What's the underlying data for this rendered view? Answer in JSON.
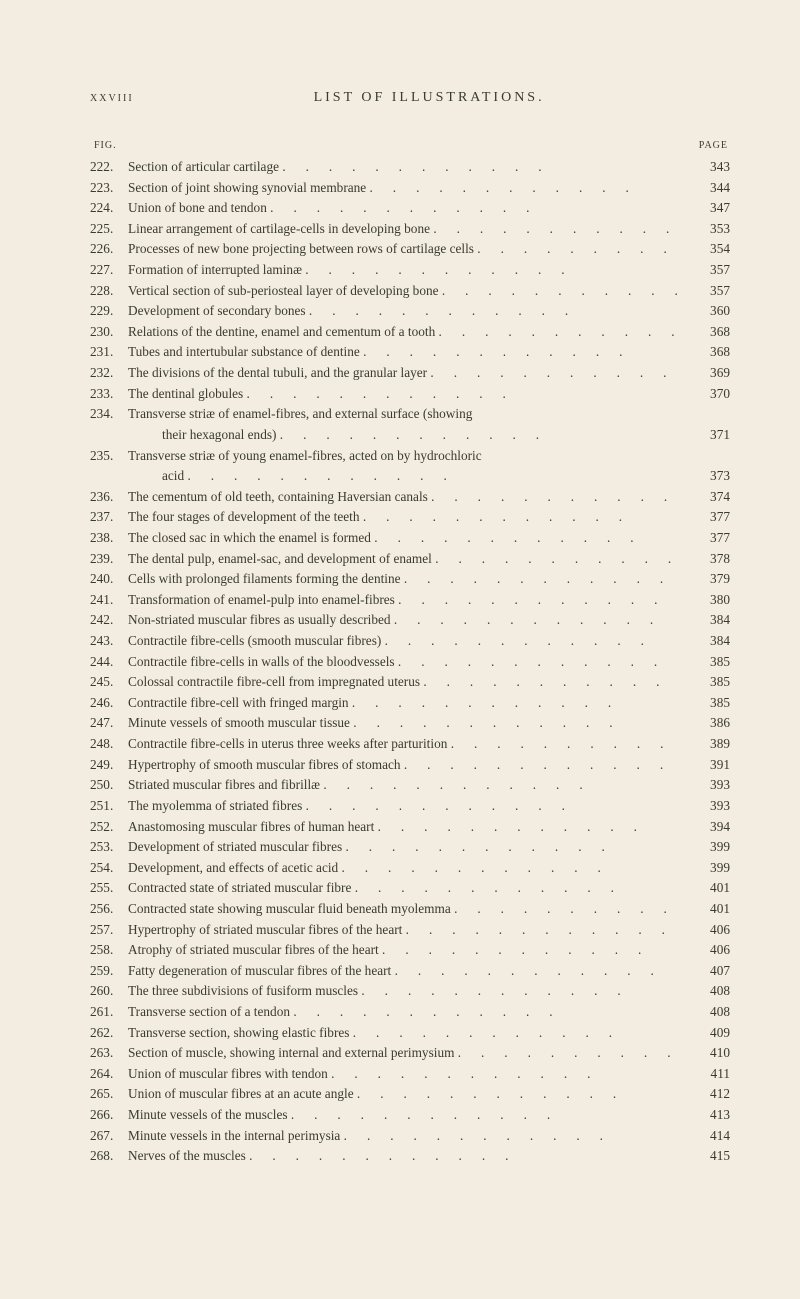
{
  "header": {
    "roman": "xxviii",
    "title": "LIST OF ILLUSTRATIONS."
  },
  "col_heads": {
    "left": "FIG.",
    "right": "PAGE"
  },
  "entries": [
    {
      "fig": "222.",
      "title": "Section of articular cartilage",
      "page": "343"
    },
    {
      "fig": "223.",
      "title": "Section of joint showing synovial membrane",
      "page": "344"
    },
    {
      "fig": "224.",
      "title": "Union of bone and tendon",
      "page": "347"
    },
    {
      "fig": "225.",
      "title": "Linear arrangement of cartilage-cells in developing bone",
      "page": "353"
    },
    {
      "fig": "226.",
      "title": "Processes of new bone projecting between rows of cartilage cells",
      "page": "354"
    },
    {
      "fig": "227.",
      "title": "Formation of interrupted laminæ",
      "page": "357"
    },
    {
      "fig": "228.",
      "title": "Vertical section of sub-periosteal layer of developing bone",
      "page": "357"
    },
    {
      "fig": "229.",
      "title": "Development of secondary bones",
      "page": "360"
    },
    {
      "fig": "230.",
      "title": "Relations of the dentine, enamel and cementum of a tooth",
      "page": "368"
    },
    {
      "fig": "231.",
      "title": "Tubes and intertubular substance of dentine",
      "page": "368"
    },
    {
      "fig": "232.",
      "title": "The divisions of the dental tubuli, and the granular layer",
      "page": "369"
    },
    {
      "fig": "233.",
      "title": "The dentinal globules",
      "page": "370"
    },
    {
      "fig": "234.",
      "title": "Transverse striæ of enamel-fibres, and external surface (showing",
      "page": "",
      "no_leader": true
    },
    {
      "fig": "",
      "title": "their hexagonal ends)",
      "page": "371",
      "cont": true
    },
    {
      "fig": "235.",
      "title": "Transverse striæ of young enamel-fibres, acted on by hydrochloric",
      "page": "",
      "no_leader": true
    },
    {
      "fig": "",
      "title": "acid",
      "page": "373",
      "cont": true
    },
    {
      "fig": "236.",
      "title": "The cementum of old teeth, containing Haversian canals",
      "page": "374"
    },
    {
      "fig": "237.",
      "title": "The four stages of development of the teeth",
      "page": "377"
    },
    {
      "fig": "238.",
      "title": "The closed sac in which the enamel is formed",
      "page": "377"
    },
    {
      "fig": "239.",
      "title": "The dental pulp, enamel-sac, and development of enamel",
      "page": "378"
    },
    {
      "fig": "240.",
      "title": "Cells with prolonged filaments forming the dentine",
      "page": "379"
    },
    {
      "fig": "241.",
      "title": "Transformation of enamel-pulp into enamel-fibres",
      "page": "380"
    },
    {
      "fig": "242.",
      "title": "Non-striated muscular fibres as usually described",
      "page": "384"
    },
    {
      "fig": "243.",
      "title": "Contractile fibre-cells (smooth muscular fibres)",
      "page": "384"
    },
    {
      "fig": "244.",
      "title": "Contractile fibre-cells in walls of the bloodvessels",
      "page": "385"
    },
    {
      "fig": "245.",
      "title": "Colossal contractile fibre-cell from impregnated uterus",
      "page": "385"
    },
    {
      "fig": "246.",
      "title": "Contractile fibre-cell with fringed margin",
      "page": "385"
    },
    {
      "fig": "247.",
      "title": "Minute vessels of smooth muscular tissue",
      "page": "386"
    },
    {
      "fig": "248.",
      "title": "Contractile fibre-cells in uterus three weeks after parturition",
      "page": "389"
    },
    {
      "fig": "249.",
      "title": "Hypertrophy of smooth muscular fibres of stomach",
      "page": "391"
    },
    {
      "fig": "250.",
      "title": "Striated muscular fibres and fibrillæ",
      "page": "393"
    },
    {
      "fig": "251.",
      "title": "The myolemma of striated fibres",
      "page": "393"
    },
    {
      "fig": "252.",
      "title": "Anastomosing muscular fibres of human heart",
      "page": "394"
    },
    {
      "fig": "253.",
      "title": "Development of striated muscular fibres",
      "page": "399"
    },
    {
      "fig": "254.",
      "title": "Development, and effects of acetic acid",
      "page": "399"
    },
    {
      "fig": "255.",
      "title": "Contracted state of striated muscular fibre",
      "page": "401"
    },
    {
      "fig": "256.",
      "title": "Contracted state showing muscular fluid beneath myolemma",
      "page": "401"
    },
    {
      "fig": "257.",
      "title": "Hypertrophy of striated muscular fibres of the heart",
      "page": "406"
    },
    {
      "fig": "258.",
      "title": "Atrophy of striated muscular fibres of the heart",
      "page": "406"
    },
    {
      "fig": "259.",
      "title": "Fatty degeneration of muscular fibres of the heart",
      "page": "407"
    },
    {
      "fig": "260.",
      "title": "The three subdivisions of fusiform muscles",
      "page": "408"
    },
    {
      "fig": "261.",
      "title": "Transverse section of a tendon",
      "page": "408"
    },
    {
      "fig": "262.",
      "title": "Transverse section, showing elastic fibres",
      "page": "409"
    },
    {
      "fig": "263.",
      "title": "Section of muscle, showing internal and external perimysium",
      "page": "410"
    },
    {
      "fig": "264.",
      "title": "Union of muscular fibres with tendon",
      "page": "411"
    },
    {
      "fig": "265.",
      "title": "Union of muscular fibres at an acute angle",
      "page": "412"
    },
    {
      "fig": "266.",
      "title": "Minute vessels of the muscles",
      "page": "413"
    },
    {
      "fig": "267.",
      "title": "Minute vessels in the internal perimysia",
      "page": "414"
    },
    {
      "fig": "268.",
      "title": "Nerves of the muscles",
      "page": "415"
    }
  ]
}
